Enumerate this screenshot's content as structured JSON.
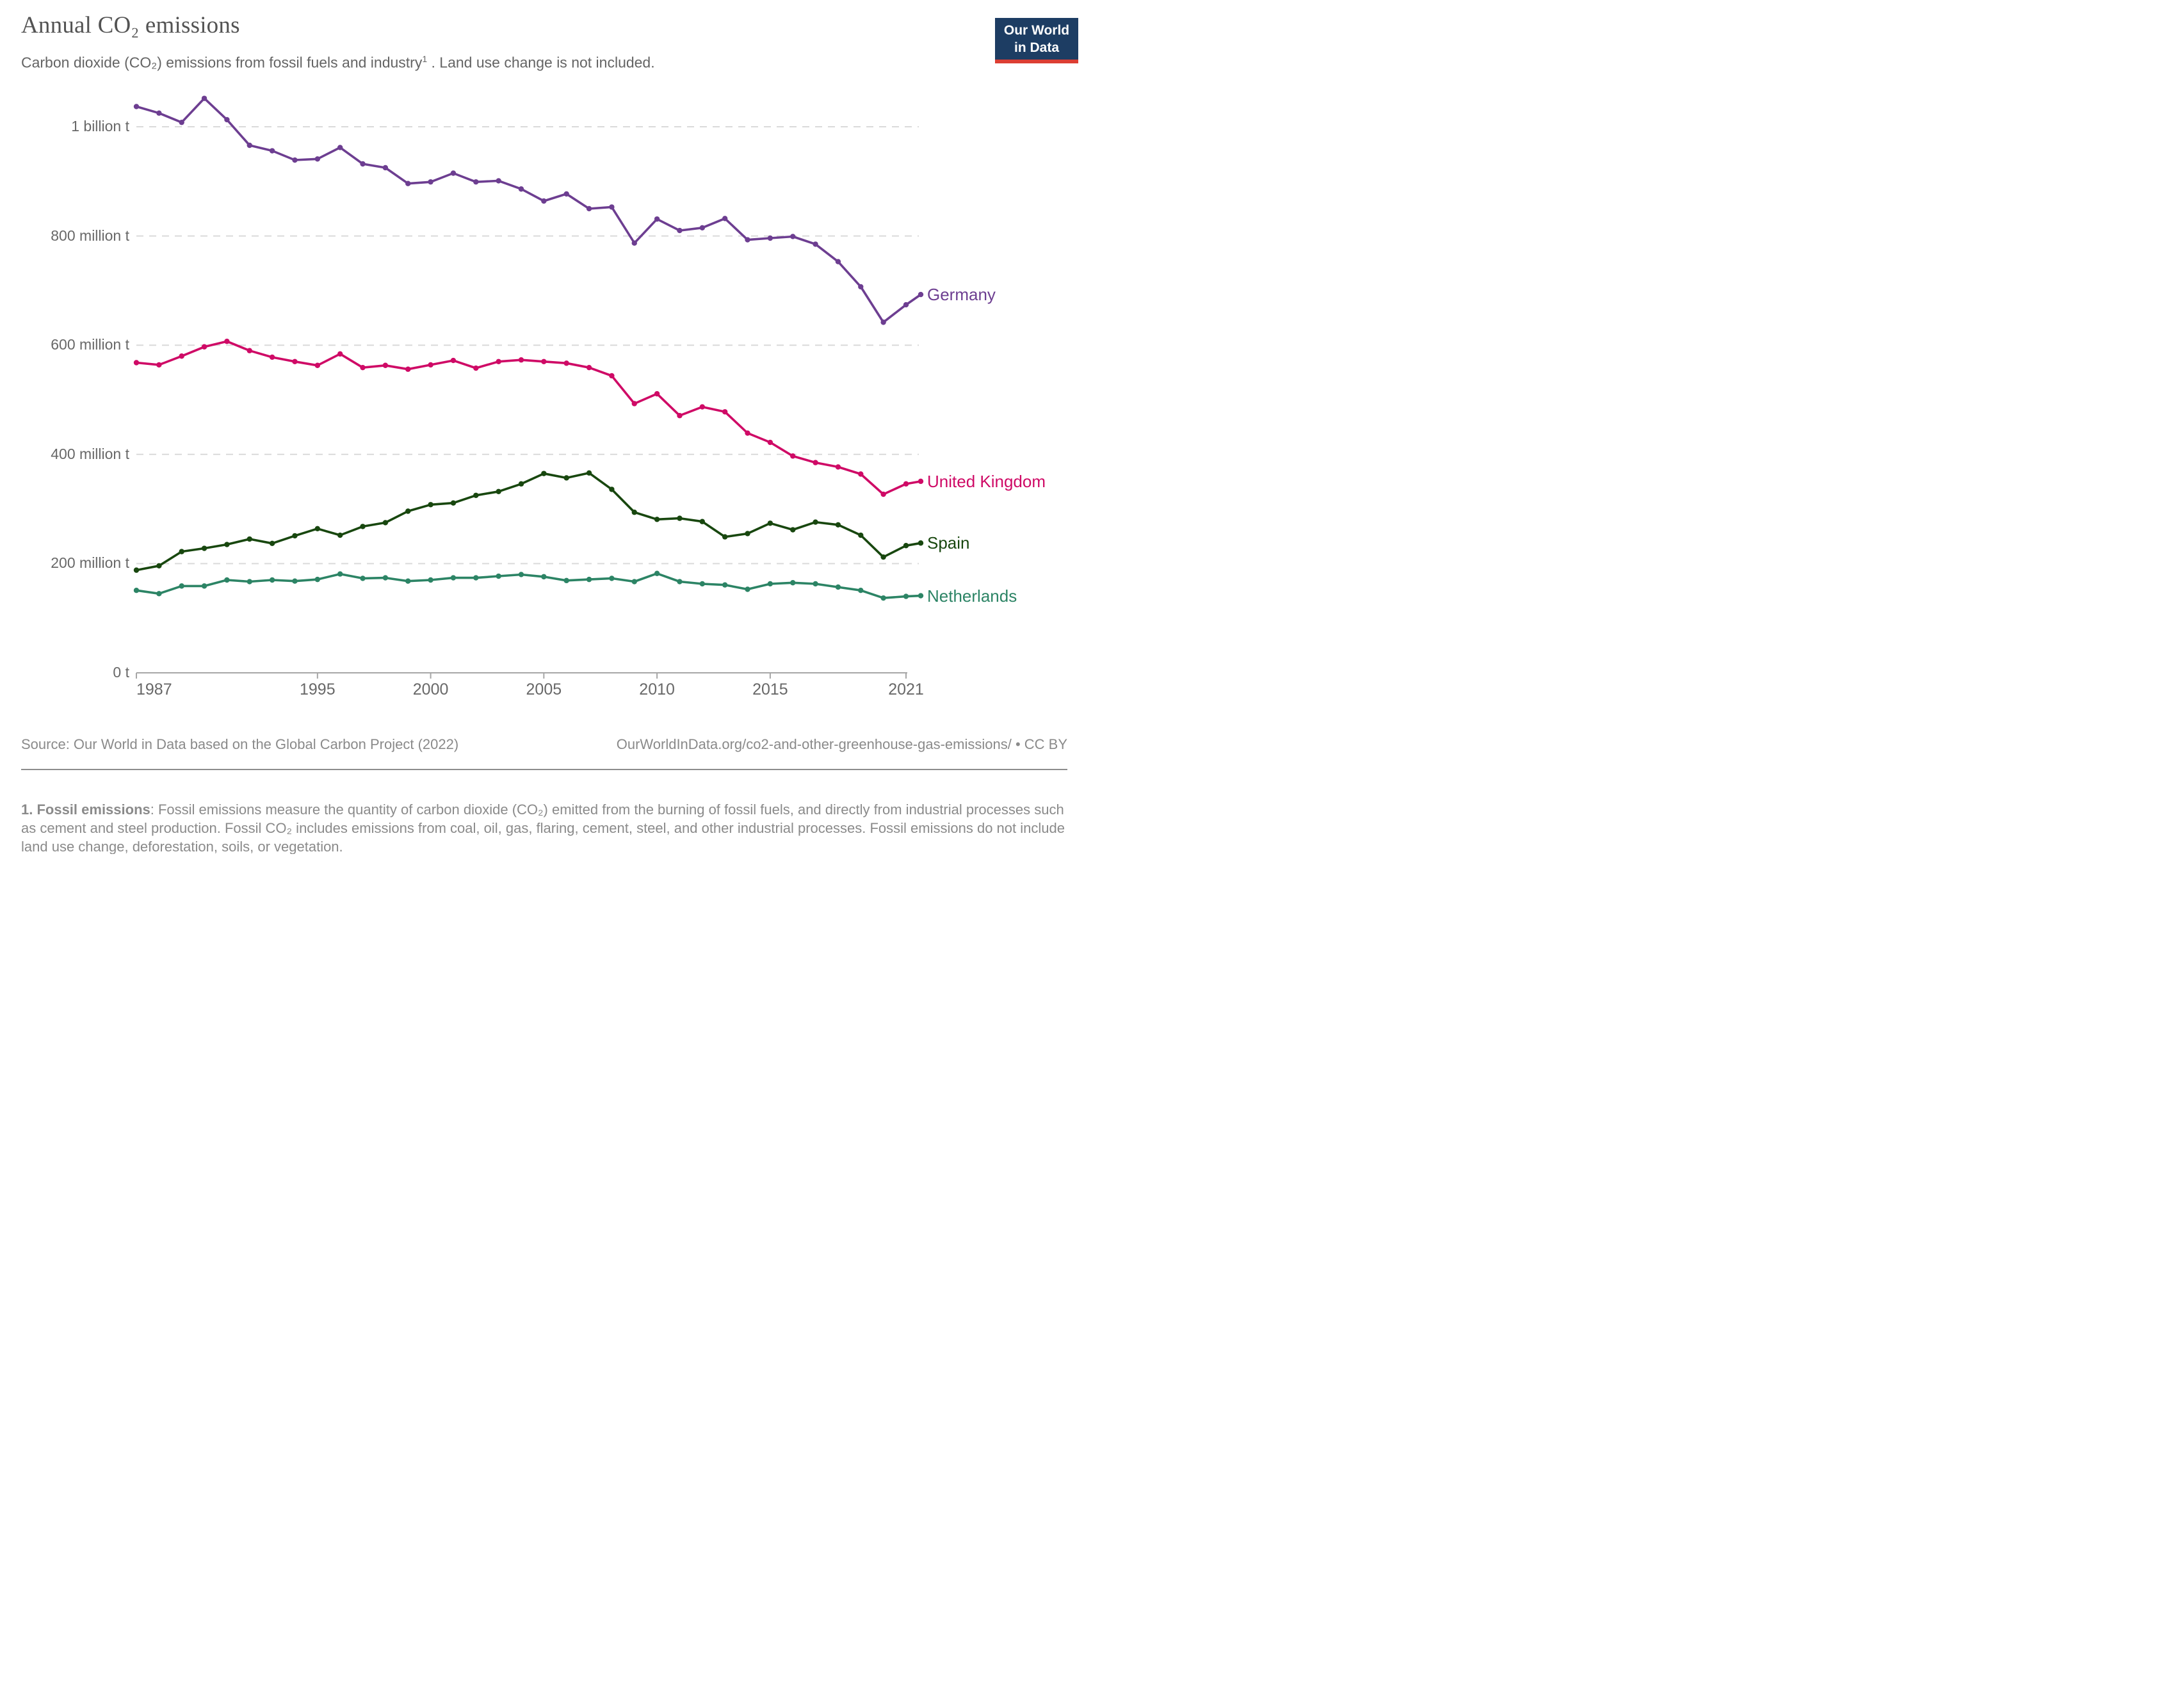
{
  "header": {
    "title": "Annual CO₂ emissions",
    "subtitle": {
      "main": "Carbon dioxide (CO₂) emissions from fossil fuels and industry",
      "footnote_marker": "1",
      "rest": " . Land use change is not included."
    },
    "logo": {
      "line1": "Our World",
      "line2": "in Data"
    }
  },
  "chart_data": {
    "type": "line",
    "title": "Annual CO₂ emissions",
    "unit": "tonnes of CO₂",
    "grid": "horizontal-dashed",
    "legend_position": "end-of-line-labels",
    "ylim_mt": [
      0,
      1080
    ],
    "x": [
      1987,
      1988,
      1989,
      1990,
      1991,
      1992,
      1993,
      1994,
      1995,
      1996,
      1997,
      1998,
      1999,
      2000,
      2001,
      2002,
      2003,
      2004,
      2005,
      2006,
      2007,
      2008,
      2009,
      2010,
      2011,
      2012,
      2013,
      2014,
      2015,
      2016,
      2017,
      2018,
      2019,
      2020,
      2021
    ],
    "xticks": [
      1987,
      1995,
      2000,
      2005,
      2010,
      2015,
      2021
    ],
    "yticks": [
      {
        "value": 0,
        "label": "0 t"
      },
      {
        "value": 200,
        "label": "200 million t"
      },
      {
        "value": 400,
        "label": "400 million t"
      },
      {
        "value": 600,
        "label": "600 million t"
      },
      {
        "value": 800,
        "label": "800 million t"
      },
      {
        "value": 1000,
        "label": "1 billion t"
      }
    ],
    "series": [
      {
        "name": "Germany",
        "color": "#6d3e91",
        "values": [
          1037,
          1025,
          1008,
          1052,
          1013,
          966,
          956,
          939,
          941,
          962,
          932,
          925,
          896,
          899,
          915,
          899,
          901,
          886,
          864,
          877,
          850,
          853,
          787,
          831,
          810,
          815,
          832,
          793,
          796,
          799,
          785,
          753,
          707,
          642,
          674
        ]
      },
      {
        "name": "United Kingdom",
        "color": "#cf0a66",
        "values": [
          568,
          564,
          580,
          597,
          607,
          590,
          578,
          570,
          563,
          584,
          559,
          563,
          556,
          564,
          572,
          558,
          570,
          573,
          570,
          567,
          559,
          544,
          493,
          511,
          471,
          487,
          478,
          439,
          422,
          397,
          385,
          377,
          364,
          327,
          346
        ]
      },
      {
        "name": "Spain",
        "color": "#18470f",
        "values": [
          188,
          196,
          222,
          228,
          235,
          245,
          237,
          251,
          264,
          252,
          268,
          275,
          296,
          308,
          311,
          325,
          332,
          346,
          365,
          357,
          366,
          336,
          294,
          281,
          283,
          277,
          249,
          255,
          274,
          262,
          276,
          271,
          252,
          212,
          233
        ]
      },
      {
        "name": "Netherlands",
        "color": "#2c8465",
        "values": [
          151,
          145,
          159,
          159,
          170,
          167,
          170,
          168,
          171,
          181,
          173,
          174,
          168,
          170,
          174,
          174,
          177,
          180,
          176,
          169,
          171,
          173,
          167,
          182,
          167,
          163,
          161,
          153,
          163,
          165,
          163,
          157,
          151,
          137,
          140
        ]
      }
    ]
  },
  "footer": {
    "source_label": "Source: Our World in Data based on the Global Carbon Project (2022)",
    "link_text": "OurWorldInData.org/co2-and-other-greenhouse-gas-emissions/ • CC BY",
    "footnote_bold": "1. Fossil emissions",
    "footnote_rest": ": Fossil emissions measure the quantity of carbon dioxide (CO₂) emitted from the burning of fossil fuels, and directly from industrial processes such as cement and steel production. Fossil CO₂ includes emissions from coal, oil, gas, flaring, cement, steel, and other industrial processes. Fossil emissions do not include land use change, deforestation, soils, or vegetation."
  }
}
